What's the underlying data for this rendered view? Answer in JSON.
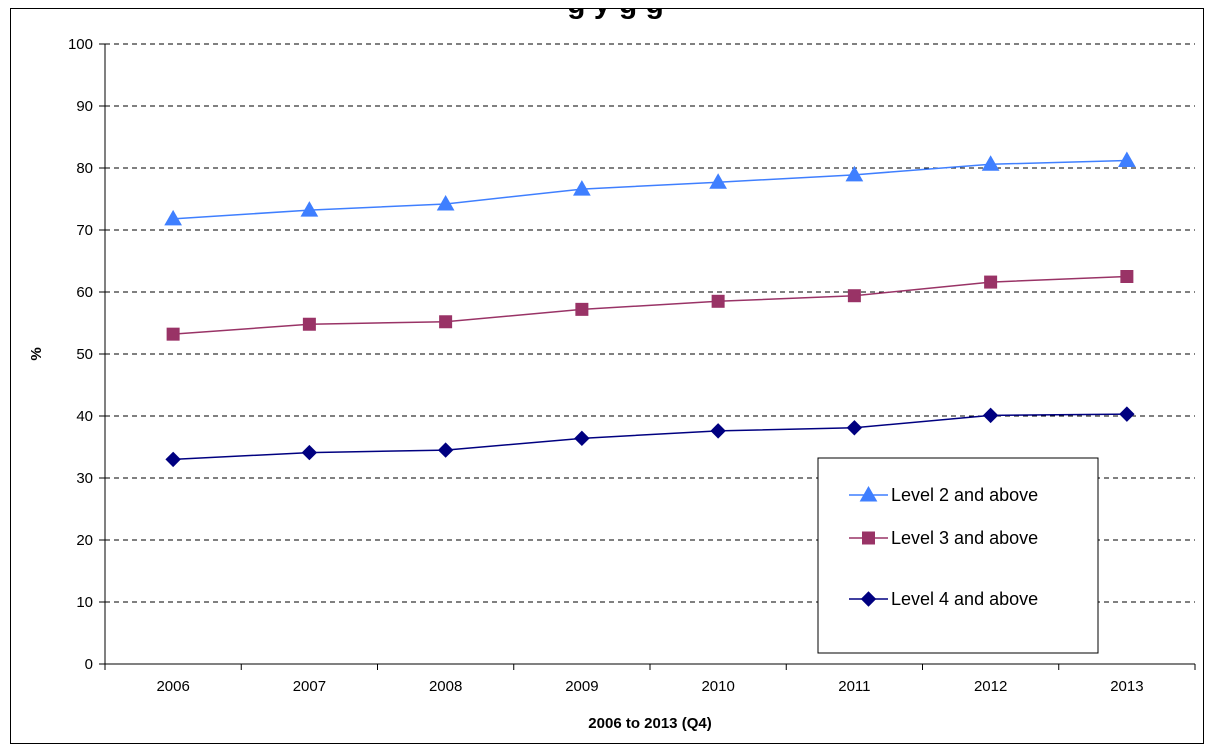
{
  "chart_data": {
    "type": "line",
    "title": "g                                              y                          g g",
    "xlabel": "2006 to 2013 (Q4)",
    "ylabel": "%",
    "categories": [
      "2006",
      "2007",
      "2008",
      "2009",
      "2010",
      "2011",
      "2012",
      "2013"
    ],
    "ylim": [
      0,
      100
    ],
    "yticks": [
      "0",
      "10",
      "20",
      "30",
      "40",
      "50",
      "60",
      "70",
      "80",
      "90",
      "100"
    ],
    "grid": "horizontal dashed",
    "legend_position": "right, lower middle",
    "series": [
      {
        "name": "Level 2 and above",
        "color": "#3F7FFF",
        "marker": "triangle",
        "values": [
          71.8,
          73.2,
          74.2,
          76.6,
          77.7,
          78.9,
          80.6,
          81.2
        ]
      },
      {
        "name": "Level 3 and above",
        "color": "#993366",
        "marker": "square",
        "values": [
          53.2,
          54.8,
          55.2,
          57.2,
          58.5,
          59.4,
          61.6,
          62.5
        ]
      },
      {
        "name": "Level 4 and above",
        "color": "#000080",
        "marker": "diamond",
        "values": [
          33.0,
          34.1,
          34.5,
          36.4,
          37.6,
          38.1,
          40.1,
          40.3
        ]
      }
    ]
  }
}
